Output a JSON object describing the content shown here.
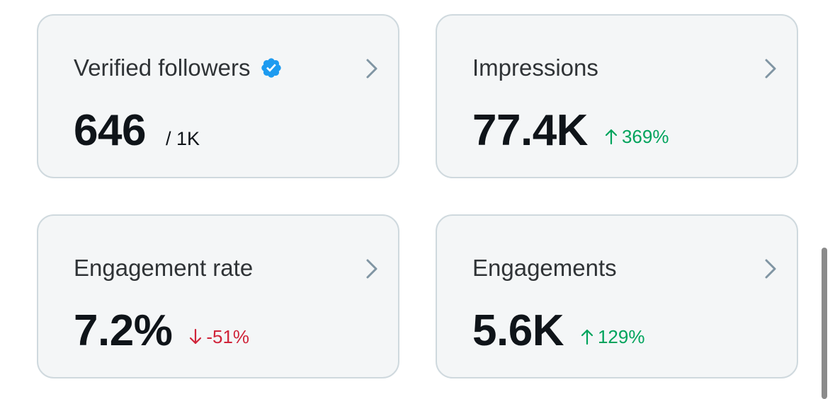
{
  "cards": [
    {
      "title": "Verified followers",
      "value": "646",
      "sub": "/ 1K",
      "icons": [
        "verified-badge-icon",
        "chevron-right-icon"
      ],
      "colors": {
        "verified": "#1d9bf0"
      }
    },
    {
      "title": "Impressions",
      "value": "77.4K",
      "change": "369%",
      "direction": "up",
      "icons": [
        "arrow-up-icon",
        "chevron-right-icon"
      ]
    },
    {
      "title": "Engagement rate",
      "value": "7.2%",
      "change": "-51%",
      "direction": "down",
      "icons": [
        "arrow-down-icon",
        "chevron-right-icon"
      ]
    },
    {
      "title": "Engagements",
      "value": "5.6K",
      "change": "129%",
      "direction": "up",
      "icons": [
        "arrow-up-icon",
        "chevron-right-icon"
      ]
    }
  ],
  "colors": {
    "card_background": "#f4f6f7",
    "card_border": "#cfd9de",
    "positive": "#00a35c",
    "negative": "#d0243a",
    "text_primary": "#0f1419",
    "text_secondary": "#2f3336",
    "chevron": "#8095a3"
  }
}
